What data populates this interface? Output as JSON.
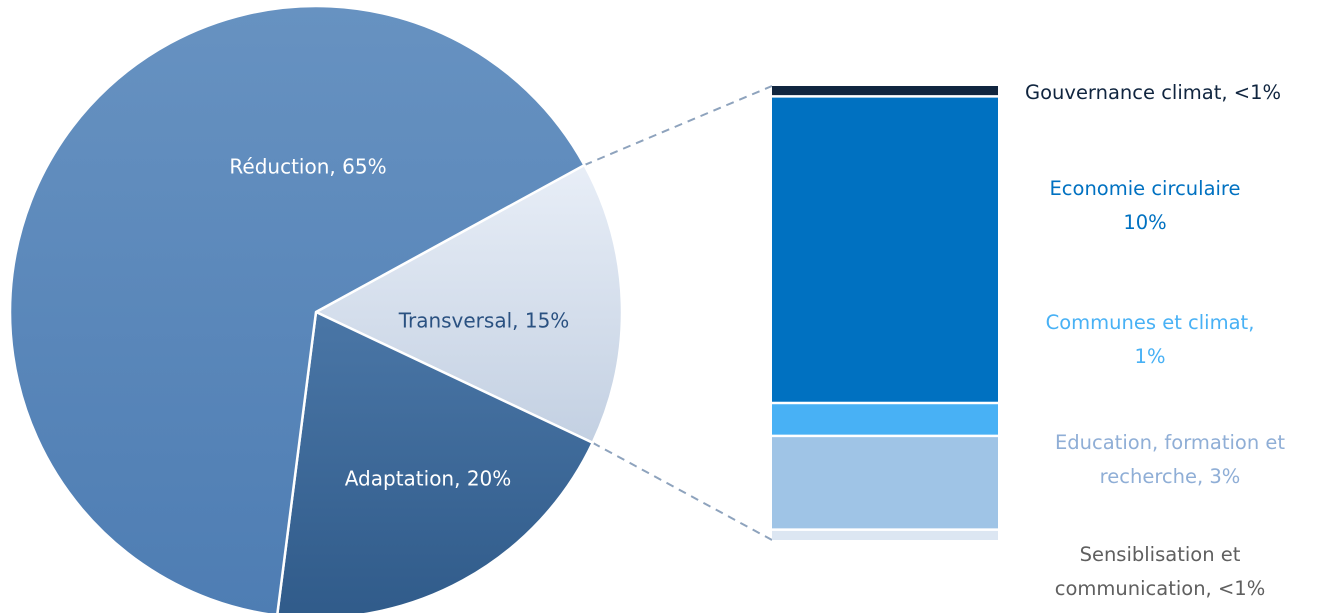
{
  "chart_data": [
    {
      "type": "pie",
      "slices": [
        {
          "label": "Réduction, 65%",
          "category": "Réduction",
          "value": 65,
          "color": "#5a87b9",
          "label_color": "#ffffff"
        },
        {
          "label": "Transversal, 15%",
          "category": "Transversal",
          "value": 15,
          "color": "#dde5f1",
          "label_color": "#2a5181"
        },
        {
          "label": "Adaptation, 20%",
          "category": "Adaptation",
          "value": 20,
          "color": "#3f6b9a",
          "label_color": "#ffffff"
        }
      ]
    },
    {
      "type": "bar",
      "stacked": true,
      "breakdown_of": "Transversal",
      "segments": [
        {
          "label": "Gouvernance climat, <1%",
          "category": "Gouvernance climat",
          "value": 0.3,
          "color": "#10253f",
          "label_color": "#10253f"
        },
        {
          "label_lines": [
            "Economie circulaire",
            "10%"
          ],
          "category": "Economie circulaire",
          "value": 10,
          "color": "#0071c1",
          "label_color": "#0071c1"
        },
        {
          "label_lines": [
            "Communes et climat,",
            "1%"
          ],
          "category": "Communes et climat",
          "value": 1,
          "color": "#48b1f5",
          "label_color": "#48b1f5"
        },
        {
          "label_lines": [
            "Education, formation et",
            "recherche, 3%"
          ],
          "category": "Education, formation et recherche",
          "value": 3,
          "color": "#9fc4e6",
          "label_color": "#8faed6"
        },
        {
          "label_lines": [
            "Sensiblisation et",
            "communication, <1%"
          ],
          "category": "Sensiblisation et communication",
          "value": 0.3,
          "color": "#dce6f2",
          "label_color": "#5f5f5f"
        }
      ]
    }
  ]
}
